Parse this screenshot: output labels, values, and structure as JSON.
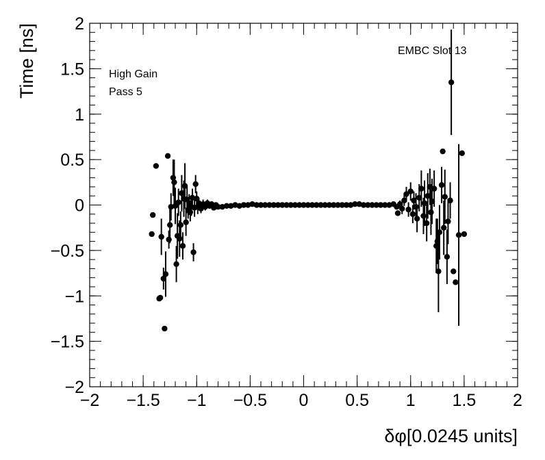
{
  "chart_data": {
    "type": "scatter",
    "title": "",
    "xlabel": "δφ[0.0245 units]",
    "ylabel": "Time [ns]",
    "xlim": [
      -2,
      2
    ],
    "ylim": [
      -2,
      2
    ],
    "grid": false,
    "annotations": {
      "top_right": "EMBC Slot 13",
      "top_left_line1": "High Gain",
      "top_left_line2": "Pass 5"
    },
    "x_ticks": [
      {
        "value": -2,
        "label": "−2"
      },
      {
        "value": -1.5,
        "label": "−1.5"
      },
      {
        "value": -1,
        "label": "−1"
      },
      {
        "value": -0.5,
        "label": "−0.5"
      },
      {
        "value": 0,
        "label": "0"
      },
      {
        "value": 0.5,
        "label": "0.5"
      },
      {
        "value": 1,
        "label": "1"
      },
      {
        "value": 1.5,
        "label": "1.5"
      },
      {
        "value": 2,
        "label": "2"
      }
    ],
    "y_ticks": [
      {
        "value": -2,
        "label": "−2"
      },
      {
        "value": -1.5,
        "label": "−1.5"
      },
      {
        "value": -1,
        "label": "−1"
      },
      {
        "value": -0.5,
        "label": "−0.5"
      },
      {
        "value": 0,
        "label": "0"
      },
      {
        "value": 0.5,
        "label": "0.5"
      },
      {
        "value": 1,
        "label": "1"
      },
      {
        "value": 1.5,
        "label": "1.5"
      },
      {
        "value": 2,
        "label": "2"
      }
    ],
    "series": [
      {
        "marker": "circle",
        "color": "#000000",
        "points": [
          {
            "x": -1.42,
            "y": -0.32,
            "err": 0.0
          },
          {
            "x": -1.41,
            "y": -0.11,
            "err": 0.0
          },
          {
            "x": -1.38,
            "y": 0.43,
            "err": 0.0
          },
          {
            "x": -1.35,
            "y": -1.03,
            "err": 0.0
          },
          {
            "x": -1.34,
            "y": -1.02,
            "err": 0.0
          },
          {
            "x": -1.33,
            "y": -0.35,
            "err": 0.2
          },
          {
            "x": -1.31,
            "y": -0.81,
            "err": 0.12
          },
          {
            "x": -1.3,
            "y": -1.36,
            "err": 0.0
          },
          {
            "x": -1.29,
            "y": -0.76,
            "err": 0.25
          },
          {
            "x": -1.27,
            "y": 0.54,
            "err": 0.0
          },
          {
            "x": -1.26,
            "y": -0.38,
            "err": 0.1
          },
          {
            "x": -1.25,
            "y": -0.22,
            "err": 0.2
          },
          {
            "x": -1.24,
            "y": -0.02,
            "err": 0.15
          },
          {
            "x": -1.22,
            "y": 0.3,
            "err": 0.2
          },
          {
            "x": -1.21,
            "y": 0.25,
            "err": 0.25
          },
          {
            "x": -1.2,
            "y": -0.01,
            "err": 0.2
          },
          {
            "x": -1.19,
            "y": -0.65,
            "err": 0.2
          },
          {
            "x": -1.18,
            "y": -0.34,
            "err": 0.25
          },
          {
            "x": -1.17,
            "y": 0.03,
            "err": 0.15
          },
          {
            "x": -1.16,
            "y": -0.37,
            "err": 0.2
          },
          {
            "x": -1.15,
            "y": -0.22,
            "err": 0.15
          },
          {
            "x": -1.14,
            "y": 0.13,
            "err": 0.2
          },
          {
            "x": -1.13,
            "y": -0.45,
            "err": 0.15
          },
          {
            "x": -1.12,
            "y": 0.07,
            "err": 0.2
          },
          {
            "x": -1.11,
            "y": 0.21,
            "err": 0.25
          },
          {
            "x": -1.1,
            "y": -0.19,
            "err": 0.15
          },
          {
            "x": -1.09,
            "y": 0.06,
            "err": 0.15
          },
          {
            "x": -1.08,
            "y": -0.05,
            "err": 0.1
          },
          {
            "x": -1.07,
            "y": 0.02,
            "err": 0.1
          },
          {
            "x": -1.06,
            "y": -0.08,
            "err": 0.1
          },
          {
            "x": -1.05,
            "y": -0.02,
            "err": 0.1
          },
          {
            "x": -1.04,
            "y": 0.08,
            "err": 0.1
          },
          {
            "x": -1.03,
            "y": -0.52,
            "err": 0.1
          },
          {
            "x": -1.02,
            "y": -0.03,
            "err": 0.1
          },
          {
            "x": -1.01,
            "y": 0.23,
            "err": 0.1
          },
          {
            "x": -1.0,
            "y": 0.07,
            "err": 0.08
          },
          {
            "x": -0.99,
            "y": -0.02,
            "err": 0.08
          },
          {
            "x": -0.98,
            "y": 0.02,
            "err": 0.06
          },
          {
            "x": -0.96,
            "y": -0.04,
            "err": 0.05
          },
          {
            "x": -0.94,
            "y": 0.01,
            "err": 0.05
          },
          {
            "x": -0.92,
            "y": -0.02,
            "err": 0.04
          },
          {
            "x": -0.9,
            "y": 0.02,
            "err": 0.04
          },
          {
            "x": -0.88,
            "y": -0.01,
            "err": 0.03
          },
          {
            "x": -0.86,
            "y": 0.01,
            "err": 0.03
          },
          {
            "x": -0.84,
            "y": -0.03,
            "err": 0.02
          },
          {
            "x": -0.82,
            "y": 0.0,
            "err": 0.02
          },
          {
            "x": -0.8,
            "y": -0.02,
            "err": 0.0
          },
          {
            "x": -0.76,
            "y": -0.02,
            "err": 0.0
          },
          {
            "x": -0.72,
            "y": -0.01,
            "err": 0.0
          },
          {
            "x": -0.68,
            "y": -0.01,
            "err": 0.0
          },
          {
            "x": -0.64,
            "y": 0.0,
            "err": 0.0
          },
          {
            "x": -0.6,
            "y": -0.01,
            "err": 0.0
          },
          {
            "x": -0.56,
            "y": 0.0,
            "err": 0.0
          },
          {
            "x": -0.52,
            "y": 0.0,
            "err": 0.0
          },
          {
            "x": -0.48,
            "y": 0.01,
            "err": 0.0
          },
          {
            "x": -0.44,
            "y": 0.0,
            "err": 0.0
          },
          {
            "x": -0.4,
            "y": 0.0,
            "err": 0.0
          },
          {
            "x": -0.36,
            "y": 0.0,
            "err": 0.0
          },
          {
            "x": -0.32,
            "y": 0.0,
            "err": 0.0
          },
          {
            "x": -0.28,
            "y": 0.0,
            "err": 0.0
          },
          {
            "x": -0.24,
            "y": 0.0,
            "err": 0.0
          },
          {
            "x": -0.2,
            "y": 0.0,
            "err": 0.0
          },
          {
            "x": -0.16,
            "y": 0.0,
            "err": 0.0
          },
          {
            "x": -0.12,
            "y": 0.0,
            "err": 0.0
          },
          {
            "x": -0.08,
            "y": 0.0,
            "err": 0.0
          },
          {
            "x": -0.04,
            "y": 0.0,
            "err": 0.0
          },
          {
            "x": 0.0,
            "y": 0.0,
            "err": 0.0
          },
          {
            "x": 0.04,
            "y": 0.0,
            "err": 0.0
          },
          {
            "x": 0.08,
            "y": 0.0,
            "err": 0.0
          },
          {
            "x": 0.12,
            "y": 0.0,
            "err": 0.0
          },
          {
            "x": 0.16,
            "y": 0.0,
            "err": 0.0
          },
          {
            "x": 0.2,
            "y": 0.0,
            "err": 0.0
          },
          {
            "x": 0.24,
            "y": 0.0,
            "err": 0.0
          },
          {
            "x": 0.28,
            "y": 0.0,
            "err": 0.0
          },
          {
            "x": 0.32,
            "y": 0.0,
            "err": 0.0
          },
          {
            "x": 0.36,
            "y": 0.0,
            "err": 0.0
          },
          {
            "x": 0.4,
            "y": 0.0,
            "err": 0.0
          },
          {
            "x": 0.44,
            "y": 0.0,
            "err": 0.0
          },
          {
            "x": 0.48,
            "y": 0.01,
            "err": 0.0
          },
          {
            "x": 0.52,
            "y": 0.01,
            "err": 0.0
          },
          {
            "x": 0.56,
            "y": 0.0,
            "err": 0.0
          },
          {
            "x": 0.6,
            "y": 0.0,
            "err": 0.0
          },
          {
            "x": 0.64,
            "y": 0.0,
            "err": 0.0
          },
          {
            "x": 0.68,
            "y": 0.0,
            "err": 0.0
          },
          {
            "x": 0.72,
            "y": 0.0,
            "err": 0.0
          },
          {
            "x": 0.76,
            "y": 0.0,
            "err": 0.0
          },
          {
            "x": 0.8,
            "y": 0.0,
            "err": 0.0
          },
          {
            "x": 0.84,
            "y": 0.01,
            "err": 0.0
          },
          {
            "x": 0.87,
            "y": -0.02,
            "err": 0.02
          },
          {
            "x": 0.88,
            "y": -0.09,
            "err": 0.03
          },
          {
            "x": 0.9,
            "y": 0.01,
            "err": 0.04
          },
          {
            "x": 0.92,
            "y": -0.04,
            "err": 0.06
          },
          {
            "x": 0.94,
            "y": 0.05,
            "err": 0.06
          },
          {
            "x": 0.96,
            "y": 0.12,
            "err": 0.08
          },
          {
            "x": 0.98,
            "y": -0.05,
            "err": 0.08
          },
          {
            "x": 1.0,
            "y": 0.15,
            "err": 0.1
          },
          {
            "x": 1.02,
            "y": -0.1,
            "err": 0.1
          },
          {
            "x": 1.03,
            "y": 0.05,
            "err": 0.1
          },
          {
            "x": 1.05,
            "y": -0.02,
            "err": 0.15
          },
          {
            "x": 1.06,
            "y": -0.15,
            "err": 0.15
          },
          {
            "x": 1.08,
            "y": 0.08,
            "err": 0.15
          },
          {
            "x": 1.1,
            "y": 0.18,
            "err": 0.2
          },
          {
            "x": 1.12,
            "y": -0.12,
            "err": 0.2
          },
          {
            "x": 1.13,
            "y": 0.02,
            "err": 0.25
          },
          {
            "x": 1.15,
            "y": -0.2,
            "err": 0.2
          },
          {
            "x": 1.16,
            "y": 0.1,
            "err": 0.25
          },
          {
            "x": 1.18,
            "y": 0.2,
            "err": 0.2
          },
          {
            "x": 1.19,
            "y": -0.08,
            "err": 0.25
          },
          {
            "x": 1.2,
            "y": 0.04,
            "err": 0.25
          },
          {
            "x": 1.22,
            "y": 0.18,
            "err": 0.2
          },
          {
            "x": 1.24,
            "y": -0.45,
            "err": 0.3
          },
          {
            "x": 1.25,
            "y": -0.4,
            "err": 0.25
          },
          {
            "x": 1.26,
            "y": -0.73,
            "err": 0.45
          },
          {
            "x": 1.27,
            "y": -0.3,
            "err": 0.3
          },
          {
            "x": 1.29,
            "y": 0.22,
            "err": 0.2
          },
          {
            "x": 1.3,
            "y": 0.59,
            "err": 0.0
          },
          {
            "x": 1.31,
            "y": -0.25,
            "err": 0.3
          },
          {
            "x": 1.32,
            "y": 0.09,
            "err": 0.3
          },
          {
            "x": 1.34,
            "y": -0.57,
            "err": 0.3
          },
          {
            "x": 1.35,
            "y": -0.18,
            "err": 0.25
          },
          {
            "x": 1.37,
            "y": 0.05,
            "err": 0.2
          },
          {
            "x": 1.38,
            "y": 1.35,
            "err": 0.58
          },
          {
            "x": 1.4,
            "y": -0.73,
            "err": 0.0
          },
          {
            "x": 1.42,
            "y": -0.85,
            "err": 0.0
          },
          {
            "x": 1.45,
            "y": -0.33,
            "err": 1.0
          },
          {
            "x": 1.48,
            "y": 0.57,
            "err": 0.0
          },
          {
            "x": 1.5,
            "y": -0.32,
            "err": 0.0
          }
        ]
      }
    ]
  }
}
